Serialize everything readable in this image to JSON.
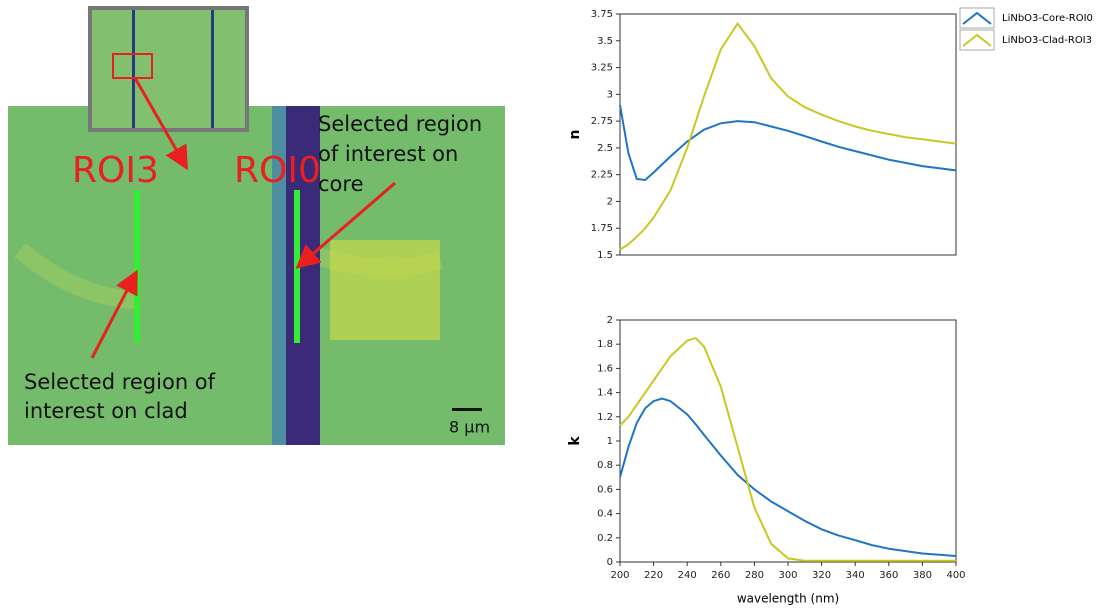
{
  "image": {
    "roi_labels": [
      "ROI3",
      "ROI0"
    ],
    "core_note": [
      "Selected region",
      "of interest on",
      "core"
    ],
    "clad_note": [
      "Selected region of",
      "interest on clad"
    ],
    "scale_bar": "8 µm"
  },
  "chart_data": [
    {
      "type": "line",
      "ylabel": "n",
      "x": [
        200,
        205,
        210,
        215,
        220,
        230,
        240,
        250,
        260,
        270,
        280,
        290,
        300,
        310,
        320,
        330,
        340,
        350,
        360,
        370,
        380,
        390,
        400
      ],
      "xlim": [
        200,
        400
      ],
      "ylim": [
        1.5,
        3.75
      ],
      "yticks": [
        1.5,
        1.75,
        2,
        2.25,
        2.5,
        2.75,
        3,
        3.25,
        3.5,
        3.75
      ],
      "legend": "outside-right",
      "series": [
        {
          "name": "LiNbO3-Core-ROI0",
          "color": "#1f74c8",
          "values": [
            2.9,
            2.45,
            2.21,
            2.2,
            2.27,
            2.42,
            2.56,
            2.67,
            2.73,
            2.75,
            2.74,
            2.7,
            2.66,
            2.61,
            2.56,
            2.51,
            2.47,
            2.43,
            2.39,
            2.36,
            2.33,
            2.31,
            2.29
          ]
        },
        {
          "name": "LiNbO3-Clad-ROI3",
          "color": "#c9c823",
          "values": [
            1.55,
            1.6,
            1.67,
            1.75,
            1.85,
            2.1,
            2.5,
            2.98,
            3.42,
            3.66,
            3.45,
            3.15,
            2.98,
            2.88,
            2.81,
            2.75,
            2.7,
            2.66,
            2.63,
            2.6,
            2.58,
            2.56,
            2.54
          ]
        }
      ]
    },
    {
      "type": "line",
      "ylabel": "k",
      "xlabel": "wavelength (nm)",
      "x": [
        200,
        205,
        210,
        215,
        220,
        225,
        230,
        240,
        245,
        250,
        260,
        270,
        280,
        290,
        300,
        310,
        320,
        330,
        340,
        350,
        360,
        370,
        380,
        390,
        400
      ],
      "xlim": [
        200,
        400
      ],
      "ylim": [
        0,
        2
      ],
      "xticks": [
        200,
        220,
        240,
        260,
        280,
        300,
        320,
        340,
        360,
        380,
        400
      ],
      "yticks": [
        0,
        0.2,
        0.4,
        0.6,
        0.8,
        1,
        1.2,
        1.4,
        1.6,
        1.8,
        2
      ],
      "series": [
        {
          "name": "LiNbO3-Core-ROI0",
          "color": "#1f74c8",
          "values": [
            0.7,
            0.95,
            1.15,
            1.27,
            1.33,
            1.35,
            1.33,
            1.22,
            1.14,
            1.05,
            0.88,
            0.72,
            0.6,
            0.5,
            0.42,
            0.34,
            0.27,
            0.22,
            0.18,
            0.14,
            0.11,
            0.09,
            0.07,
            0.06,
            0.05
          ]
        },
        {
          "name": "LiNbO3-Clad-ROI3",
          "color": "#c9c823",
          "values": [
            1.13,
            1.2,
            1.3,
            1.4,
            1.5,
            1.6,
            1.7,
            1.83,
            1.85,
            1.78,
            1.45,
            0.95,
            0.45,
            0.15,
            0.03,
            0.01,
            0.01,
            0.01,
            0.01,
            0.01,
            0.01,
            0.01,
            0.01,
            0.01,
            0.01
          ]
        }
      ]
    }
  ]
}
